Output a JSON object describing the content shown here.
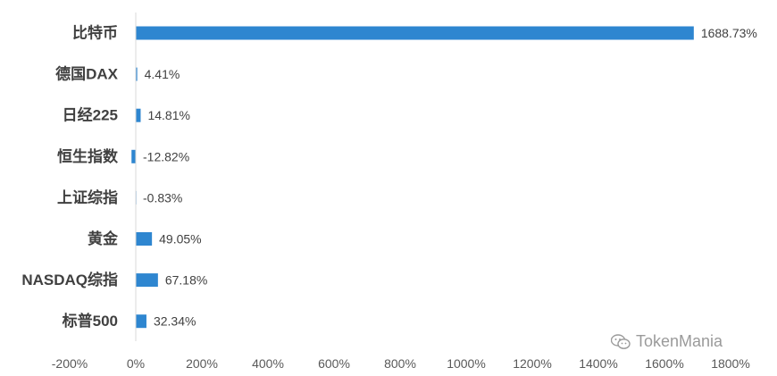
{
  "chart_data": {
    "type": "bar",
    "orientation": "horizontal",
    "categories": [
      "比特币",
      "德国DAX",
      "日经225",
      "恒生指数",
      "上证综指",
      "黄金",
      "NASDAQ综指",
      "标普500"
    ],
    "values": [
      1688.73,
      4.41,
      14.81,
      -12.82,
      -0.83,
      49.05,
      67.18,
      32.34
    ],
    "value_labels": [
      "1688.73%",
      "4.41%",
      "14.81%",
      "-12.82%",
      "-0.83%",
      "49.05%",
      "67.18%",
      "32.34%"
    ],
    "xlim": [
      -200,
      1800
    ],
    "x_ticks": [
      -200,
      0,
      200,
      400,
      600,
      800,
      1000,
      1200,
      1400,
      1600,
      1800
    ],
    "x_tick_labels": [
      "-200%",
      "0%",
      "200%",
      "400%",
      "600%",
      "800%",
      "1000%",
      "1200%",
      "1400%",
      "1600%",
      "1800%"
    ],
    "bar_color": "#2E86D0",
    "grid": false
  },
  "watermark": {
    "text": "TokenMania",
    "icon": "wechat-icon"
  }
}
